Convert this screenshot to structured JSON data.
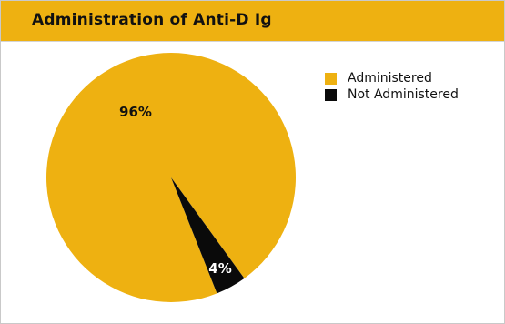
{
  "header": {
    "title": "Administration of Anti-D Ig"
  },
  "colors": {
    "header_bg": "#eeb111",
    "slice_administered": "#eeb111",
    "slice_not_administered": "#0a0a0a"
  },
  "chart_data": {
    "type": "pie",
    "title": "Administration of Anti-D Ig",
    "legend_position": "top-right",
    "slices": [
      {
        "name": "Administered",
        "value": 96,
        "label": "96%",
        "color": "#eeb111",
        "label_color": "#111111"
      },
      {
        "name": "Not Administered",
        "value": 4,
        "label": "4%",
        "color": "#0a0a0a",
        "label_color": "#ffffff"
      }
    ]
  }
}
